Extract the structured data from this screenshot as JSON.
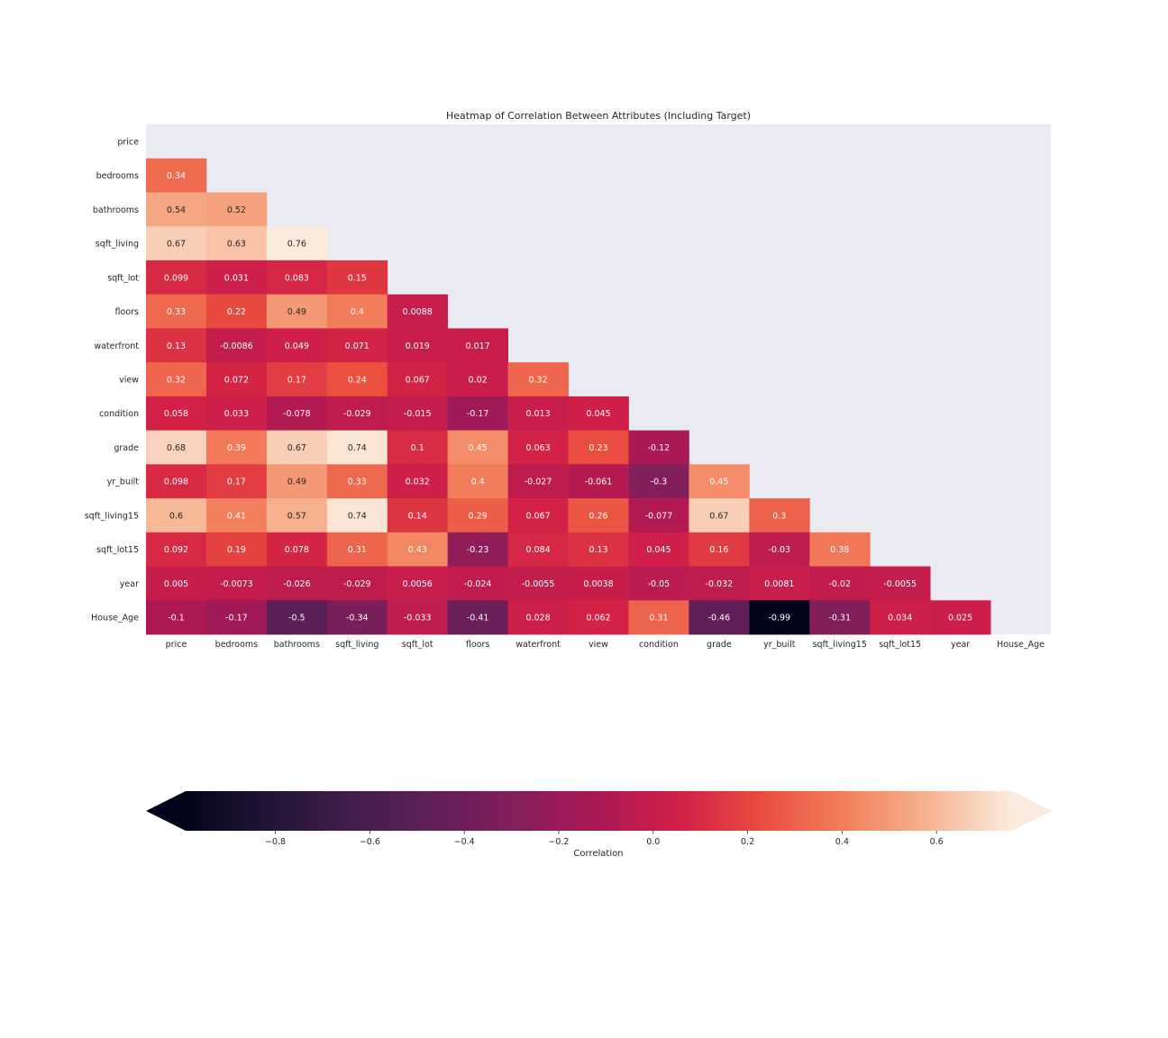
{
  "chart_data": {
    "type": "heatmap",
    "title": "Heatmap of Correlation Between Attributes (Including Target)",
    "mask": "upper-triangle-including-diagonal",
    "labels": [
      "price",
      "bedrooms",
      "bathrooms",
      "sqft_living",
      "sqft_lot",
      "floors",
      "waterfront",
      "view",
      "condition",
      "grade",
      "yr_built",
      "sqft_living15",
      "sqft_lot15",
      "year",
      "House_Age"
    ],
    "values": [
      [
        null,
        null,
        null,
        null,
        null,
        null,
        null,
        null,
        null,
        null,
        null,
        null,
        null,
        null,
        null
      ],
      [
        0.34,
        null,
        null,
        null,
        null,
        null,
        null,
        null,
        null,
        null,
        null,
        null,
        null,
        null,
        null
      ],
      [
        0.54,
        0.52,
        null,
        null,
        null,
        null,
        null,
        null,
        null,
        null,
        null,
        null,
        null,
        null,
        null
      ],
      [
        0.67,
        0.63,
        0.76,
        null,
        null,
        null,
        null,
        null,
        null,
        null,
        null,
        null,
        null,
        null,
        null
      ],
      [
        0.099,
        0.031,
        0.083,
        0.15,
        null,
        null,
        null,
        null,
        null,
        null,
        null,
        null,
        null,
        null,
        null
      ],
      [
        0.33,
        0.22,
        0.49,
        0.4,
        0.0088,
        null,
        null,
        null,
        null,
        null,
        null,
        null,
        null,
        null,
        null
      ],
      [
        0.13,
        -0.0086,
        0.049,
        0.071,
        0.019,
        0.017,
        null,
        null,
        null,
        null,
        null,
        null,
        null,
        null,
        null
      ],
      [
        0.32,
        0.072,
        0.17,
        0.24,
        0.067,
        0.02,
        0.32,
        null,
        null,
        null,
        null,
        null,
        null,
        null,
        null
      ],
      [
        0.058,
        0.033,
        -0.078,
        -0.029,
        -0.015,
        -0.17,
        0.013,
        0.045,
        null,
        null,
        null,
        null,
        null,
        null,
        null
      ],
      [
        0.68,
        0.39,
        0.67,
        0.74,
        0.1,
        0.45,
        0.063,
        0.23,
        -0.12,
        null,
        null,
        null,
        null,
        null,
        null
      ],
      [
        0.098,
        0.17,
        0.49,
        0.33,
        0.032,
        0.4,
        -0.027,
        -0.061,
        -0.3,
        0.45,
        null,
        null,
        null,
        null,
        null
      ],
      [
        0.6,
        0.41,
        0.57,
        0.74,
        0.14,
        0.29,
        0.067,
        0.26,
        -0.077,
        0.67,
        0.3,
        null,
        null,
        null,
        null
      ],
      [
        0.092,
        0.19,
        0.078,
        0.31,
        0.43,
        -0.23,
        0.084,
        0.13,
        0.045,
        0.16,
        -0.03,
        0.38,
        null,
        null,
        null
      ],
      [
        0.005,
        -0.0073,
        -0.026,
        -0.029,
        0.0056,
        -0.024,
        -0.0055,
        0.0038,
        -0.05,
        -0.032,
        0.0081,
        -0.02,
        -0.0055,
        null,
        null
      ],
      [
        -0.1,
        -0.17,
        -0.5,
        -0.34,
        -0.033,
        -0.41,
        0.028,
        0.062,
        0.31,
        -0.46,
        -0.99,
        -0.31,
        0.034,
        0.025,
        null
      ]
    ],
    "annotations": [
      [
        null,
        null,
        null,
        null,
        null,
        null,
        null,
        null,
        null,
        null,
        null,
        null,
        null,
        null,
        null
      ],
      [
        "0.34",
        null,
        null,
        null,
        null,
        null,
        null,
        null,
        null,
        null,
        null,
        null,
        null,
        null,
        null
      ],
      [
        "0.54",
        "0.52",
        null,
        null,
        null,
        null,
        null,
        null,
        null,
        null,
        null,
        null,
        null,
        null,
        null
      ],
      [
        "0.67",
        "0.63",
        "0.76",
        null,
        null,
        null,
        null,
        null,
        null,
        null,
        null,
        null,
        null,
        null,
        null
      ],
      [
        "0.099",
        "0.031",
        "0.083",
        "0.15",
        null,
        null,
        null,
        null,
        null,
        null,
        null,
        null,
        null,
        null,
        null
      ],
      [
        "0.33",
        "0.22",
        "0.49",
        "0.4",
        "0.0088",
        null,
        null,
        null,
        null,
        null,
        null,
        null,
        null,
        null,
        null
      ],
      [
        "0.13",
        "-0.0086",
        "0.049",
        "0.071",
        "0.019",
        "0.017",
        null,
        null,
        null,
        null,
        null,
        null,
        null,
        null,
        null
      ],
      [
        "0.32",
        "0.072",
        "0.17",
        "0.24",
        "0.067",
        "0.02",
        "0.32",
        null,
        null,
        null,
        null,
        null,
        null,
        null,
        null
      ],
      [
        "0.058",
        "0.033",
        "-0.078",
        "-0.029",
        "-0.015",
        "-0.17",
        "0.013",
        "0.045",
        null,
        null,
        null,
        null,
        null,
        null,
        null
      ],
      [
        "0.68",
        "0.39",
        "0.67",
        "0.74",
        "0.1",
        "0.45",
        "0.063",
        "0.23",
        "-0.12",
        null,
        null,
        null,
        null,
        null,
        null
      ],
      [
        "0.098",
        "0.17",
        "0.49",
        "0.33",
        "0.032",
        "0.4",
        "-0.027",
        "-0.061",
        "-0.3",
        "0.45",
        null,
        null,
        null,
        null,
        null
      ],
      [
        "0.6",
        "0.41",
        "0.57",
        "0.74",
        "0.14",
        "0.29",
        "0.067",
        "0.26",
        "-0.077",
        "0.67",
        "0.3",
        null,
        null,
        null,
        null
      ],
      [
        "0.092",
        "0.19",
        "0.078",
        "0.31",
        "0.43",
        "-0.23",
        "0.084",
        "0.13",
        "0.045",
        "0.16",
        "-0.03",
        "0.38",
        null,
        null,
        null
      ],
      [
        "0.005",
        "-0.0073",
        "-0.026",
        "-0.029",
        "0.0056",
        "-0.024",
        "-0.0055",
        "0.0038",
        "-0.05",
        "-0.032",
        "0.0081",
        "-0.02",
        "-0.0055",
        null,
        null
      ],
      [
        "-0.1",
        "-0.17",
        "-0.5",
        "-0.34",
        "-0.033",
        "-0.41",
        "0.028",
        "0.062",
        "0.31",
        "-0.46",
        "-0.99",
        "-0.31",
        "0.034",
        "0.025",
        null
      ]
    ],
    "colormap": "rocket",
    "colorbar": {
      "orientation": "horizontal",
      "placement": "bottom",
      "label": "Correlation",
      "extend": "both",
      "range": [
        -0.99,
        0.76
      ],
      "ticks": [
        -0.8,
        -0.6,
        -0.4,
        -0.2,
        0.0,
        0.2,
        0.4,
        0.6
      ],
      "tick_labels": [
        "−0.8",
        "−0.6",
        "−0.4",
        "−0.2",
        "0.0",
        "0.2",
        "0.4",
        "0.6"
      ]
    },
    "colors": {
      "axes_background": "#eaeaf2",
      "text_dark": "#262626",
      "annot_light": "#ffffff",
      "annot_dark": "#262626"
    }
  }
}
